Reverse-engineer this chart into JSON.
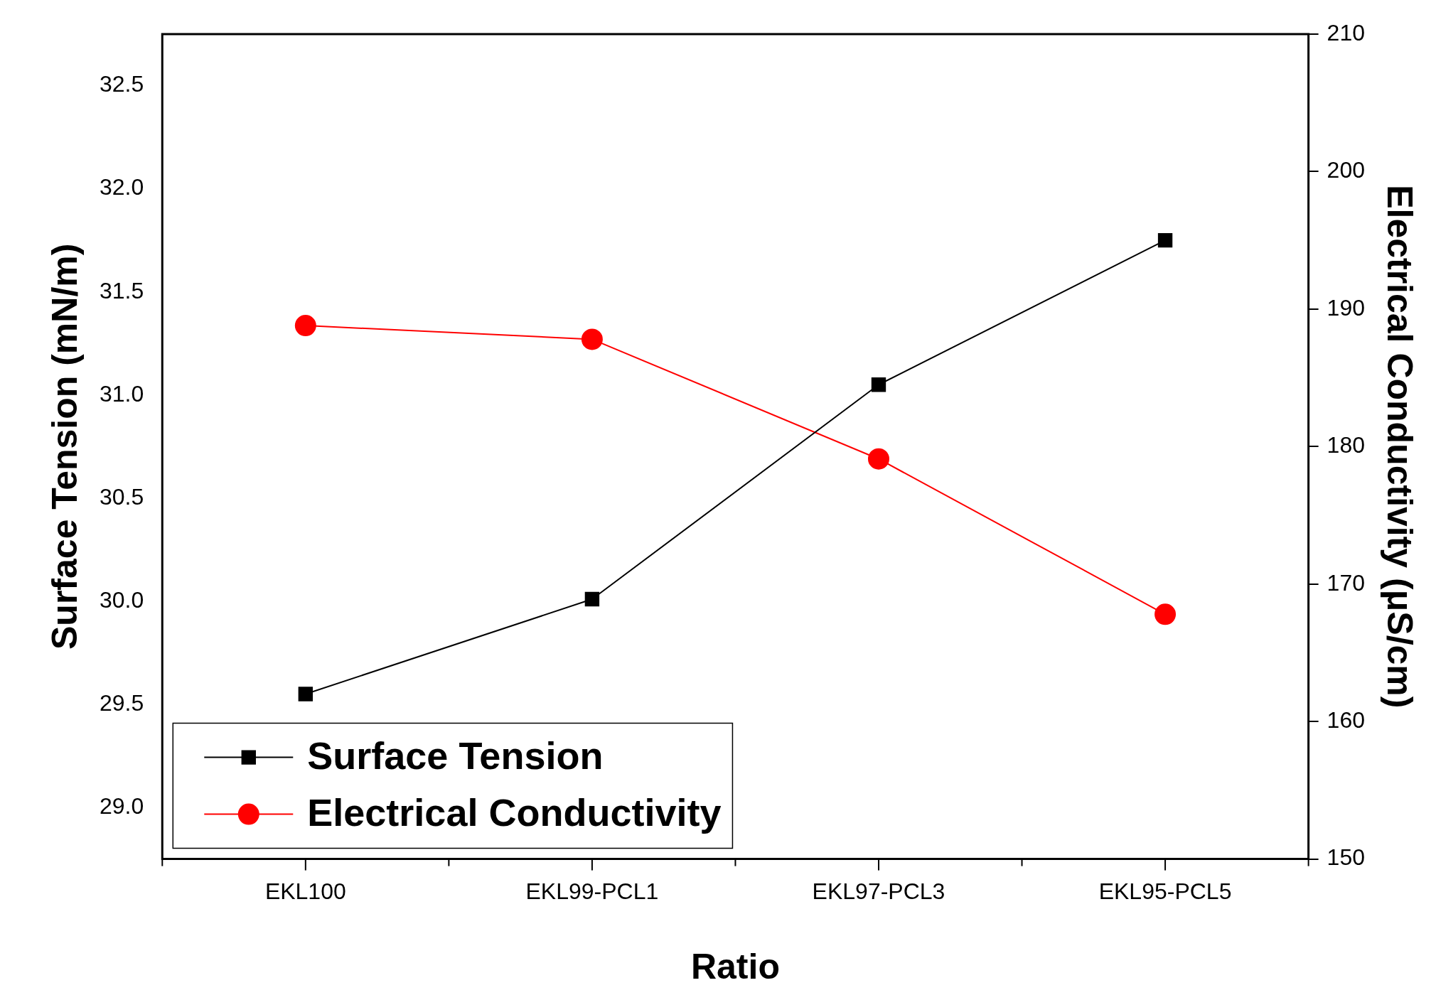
{
  "chart_data": {
    "type": "line",
    "xlabel": "Ratio",
    "ylabel": "Surface Tension (mN/m)",
    "y2label": "Electrical Conductivity (μS/cm)",
    "categories": [
      "EKL100",
      "EKL99-PCL1",
      "EKL97-PCL3",
      "EKL95-PCL5"
    ],
    "series": [
      {
        "name": "Surface Tension",
        "color": "#000000",
        "marker": "square",
        "values": [
          29.55,
          30.01,
          31.05,
          31.75
        ]
      },
      {
        "name": "Electrical Conductivity",
        "color": "#ff0000",
        "marker": "circle",
        "axis": "y2",
        "values": [
          188.8,
          187.8,
          179.1,
          167.8
        ]
      }
    ],
    "ylim": [
      28.75,
      32.75
    ],
    "yticks": [
      {
        "value": 29,
        "label": "29.0"
      },
      29.5,
      {
        "value": 30,
        "label": "30.0"
      },
      30.5,
      {
        "value": 31,
        "label": "31.0"
      },
      31.5,
      {
        "value": 32,
        "label": "32.0"
      },
      32.5
    ],
    "y2lim": [
      150,
      210
    ],
    "y2ticks": [
      150,
      160,
      170,
      180,
      190,
      200,
      210
    ],
    "grid": false,
    "legend": "bottom left",
    "line_style": "solid"
  }
}
